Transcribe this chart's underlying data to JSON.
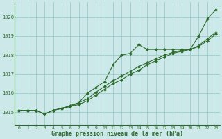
{
  "title": "Graphe pression niveau de la mer (hPa)",
  "background_color": "#cce8e8",
  "plot_bg_color": "#cce8e8",
  "grid_color": "#99cccc",
  "line_color": "#2d6b2d",
  "xlim": [
    -0.5,
    23.5
  ],
  "ylim": [
    1014.3,
    1020.8
  ],
  "yticks": [
    1015,
    1016,
    1017,
    1018,
    1019,
    1020
  ],
  "xticks": [
    0,
    1,
    2,
    3,
    4,
    5,
    6,
    7,
    8,
    9,
    10,
    11,
    12,
    13,
    14,
    15,
    16,
    17,
    18,
    19,
    20,
    21,
    22,
    23
  ],
  "series": [
    [
      1015.1,
      1015.1,
      1015.1,
      1014.9,
      1015.1,
      1015.2,
      1015.3,
      1015.5,
      1016.0,
      1016.3,
      1016.6,
      1017.5,
      1018.0,
      1018.1,
      1018.55,
      1018.3,
      1018.3,
      1018.3,
      1018.3,
      1018.3,
      1018.3,
      1019.0,
      1019.9,
      1020.4
    ],
    [
      1015.1,
      1015.1,
      1015.1,
      1014.9,
      1015.1,
      1015.2,
      1015.3,
      1015.4,
      1015.6,
      1015.9,
      1016.2,
      1016.5,
      1016.7,
      1017.0,
      1017.2,
      1017.5,
      1017.7,
      1017.9,
      1018.1,
      1018.2,
      1018.3,
      1018.45,
      1018.75,
      1019.1
    ],
    [
      1015.1,
      1015.1,
      1015.1,
      1014.9,
      1015.1,
      1015.2,
      1015.35,
      1015.5,
      1015.7,
      1016.05,
      1016.35,
      1016.65,
      1016.9,
      1017.15,
      1017.4,
      1017.6,
      1017.8,
      1018.0,
      1018.15,
      1018.25,
      1018.3,
      1018.5,
      1018.85,
      1019.2
    ]
  ]
}
